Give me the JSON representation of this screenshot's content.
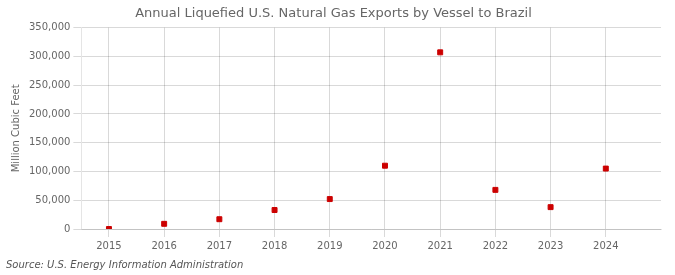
{
  "chart_data": {
    "type": "scatter",
    "title": "Annual Liquefied U.S. Natural Gas Exports by Vessel to Brazil",
    "y_label": "Million Cubic Feet",
    "annotations": [
      "Source: U.S. Energy Information Administration"
    ],
    "x": [
      2015,
      2016,
      2017,
      2018,
      2019,
      2020,
      2021,
      2022,
      2023,
      2024
    ],
    "values": [
      0,
      9000,
      17000,
      33000,
      52000,
      110000,
      307000,
      68000,
      38000,
      105000
    ],
    "color": "#cc0000",
    "marker": "square",
    "xlim": [
      2014.5,
      2025.0
    ],
    "xticks": [
      2015,
      2016,
      2017,
      2018,
      2019,
      2020,
      2021,
      2022,
      2023,
      2024
    ],
    "ylim": [
      0,
      350000
    ],
    "yticks": [
      0,
      {
        "value": 50000,
        "label": "50,000"
      },
      {
        "value": 100000,
        "label": "100,000"
      },
      {
        "value": 150000,
        "label": "150,000"
      },
      {
        "value": 200000,
        "label": "200,000"
      },
      {
        "value": 250000,
        "label": "250,000"
      },
      {
        "value": 300000,
        "label": "300,000"
      },
      {
        "value": 350000,
        "label": "350,000"
      }
    ],
    "grid": true
  }
}
